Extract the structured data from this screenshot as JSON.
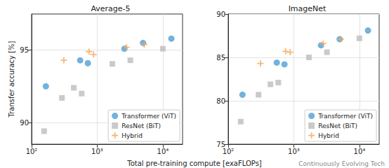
{
  "chart_data": [
    {
      "type": "scatter",
      "title": "Average-5",
      "xlabel": "Total pre-training compute [exaFLOPs]",
      "ylabel": "Transfer accuracy [%]",
      "log": "x",
      "grid": true,
      "legend": "lower right",
      "xlim": [
        100,
        20000
      ],
      "xticks": [
        {
          "value": 100,
          "label": "10²"
        },
        {
          "value": 1000,
          "label": "10³"
        },
        {
          "value": 10000,
          "label": "10⁴"
        }
      ],
      "ylim": [
        88.5,
        97.5
      ],
      "yticks": [
        90,
        95
      ],
      "series": [
        {
          "name": "Transformer (ViT)",
          "color": "#4f9fd6",
          "marker": "circle",
          "x": [
            165,
            550,
            720,
            2600,
            5000,
            13500
          ],
          "values": [
            92.5,
            94.3,
            94.1,
            95.1,
            95.5,
            95.8
          ]
        },
        {
          "name": "ResNet (BiT)",
          "color": "#bdbdbd",
          "marker": "square",
          "x": [
            155,
            290,
            440,
            580,
            1700,
            3200,
            10000
          ],
          "values": [
            89.4,
            91.7,
            92.4,
            92.0,
            94.05,
            94.3,
            95.1
          ]
        },
        {
          "name": "Hybrid",
          "color": "#f6a657",
          "marker": "plus",
          "x": [
            310,
            750,
            880,
            2800,
            5200
          ],
          "values": [
            94.3,
            94.9,
            94.7,
            95.2,
            95.4
          ]
        }
      ]
    },
    {
      "type": "scatter",
      "title": "ImageNet",
      "log": "x",
      "grid": true,
      "legend": "lower right",
      "xlim": [
        100,
        20000
      ],
      "xticks": [
        {
          "value": 100,
          "label": "10²"
        },
        {
          "value": 1000,
          "label": "10³"
        },
        {
          "value": 10000,
          "label": "10⁴"
        }
      ],
      "ylim": [
        75,
        90
      ],
      "yticks": [
        75,
        80,
        85,
        90
      ],
      "annotations": [
        "Continuously Evolving Tech"
      ],
      "series": [
        {
          "name": "Transformer (ViT)",
          "color": "#4f9fd6",
          "marker": "circle",
          "x": [
            165,
            550,
            720,
            2600,
            5000,
            13500
          ],
          "values": [
            80.7,
            84.4,
            84.2,
            86.4,
            87.1,
            88.1
          ]
        },
        {
          "name": "ResNet (BiT)",
          "color": "#bdbdbd",
          "marker": "square",
          "x": [
            155,
            290,
            440,
            580,
            1700,
            3200,
            10000
          ],
          "values": [
            77.6,
            80.7,
            81.9,
            82.1,
            85.0,
            85.6,
            87.2
          ]
        },
        {
          "name": "Hybrid",
          "color": "#f6a657",
          "marker": "plus",
          "x": [
            310,
            750,
            880,
            2800,
            5200
          ],
          "values": [
            84.3,
            85.7,
            85.6,
            86.6,
            87.1
          ]
        }
      ]
    }
  ]
}
